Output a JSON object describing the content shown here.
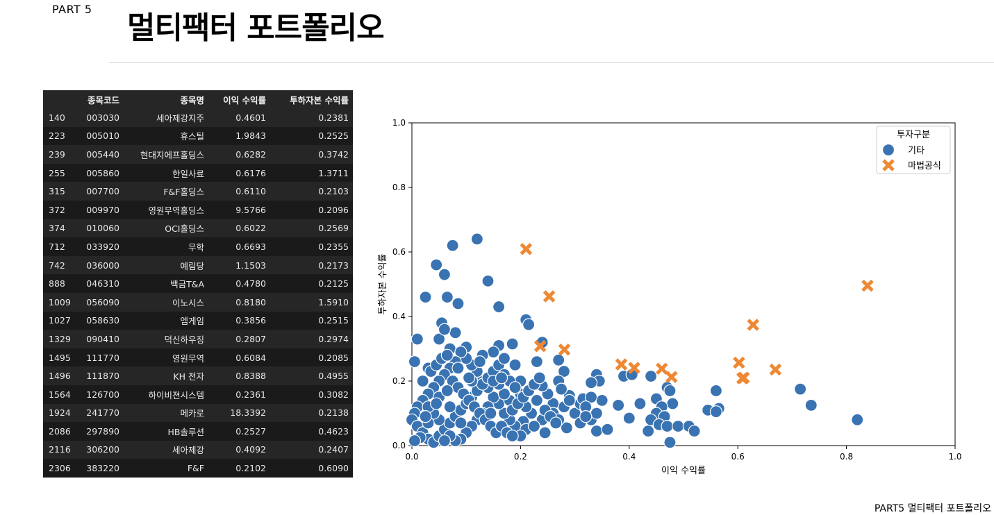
{
  "header": {
    "part": "PART 5",
    "title": "멀티팩터 포트폴리오"
  },
  "footer": "PART5 멀티팩터 포트폴리오",
  "table": {
    "columns": [
      "",
      "종목코드",
      "종목명",
      "이익 수익률",
      "투하자본 수익률"
    ],
    "rows": [
      [
        "140",
        "003030",
        "세아제강지주",
        "0.4601",
        "0.2381"
      ],
      [
        "223",
        "005010",
        "휴스틸",
        "1.9843",
        "0.2525"
      ],
      [
        "239",
        "005440",
        "현대지에프홀딩스",
        "0.6282",
        "0.3742"
      ],
      [
        "255",
        "005860",
        "한일사료",
        "0.6176",
        "1.3711"
      ],
      [
        "315",
        "007700",
        "F&F홀딩스",
        "0.6110",
        "0.2103"
      ],
      [
        "372",
        "009970",
        "영원무역홀딩스",
        "9.5766",
        "0.2096"
      ],
      [
        "374",
        "010060",
        "OCI홀딩스",
        "0.6022",
        "0.2569"
      ],
      [
        "712",
        "033920",
        "무학",
        "0.6693",
        "0.2355"
      ],
      [
        "742",
        "036000",
        "예림당",
        "1.1503",
        "0.2173"
      ],
      [
        "888",
        "046310",
        "백금T&A",
        "0.4780",
        "0.2125"
      ],
      [
        "1009",
        "056090",
        "이노시스",
        "0.8180",
        "1.5910"
      ],
      [
        "1027",
        "058630",
        "엠게임",
        "0.3856",
        "0.2515"
      ],
      [
        "1329",
        "090410",
        "덕신하우징",
        "0.2807",
        "0.2974"
      ],
      [
        "1495",
        "111770",
        "영원무역",
        "0.6084",
        "0.2085"
      ],
      [
        "1496",
        "111870",
        "KH 전자",
        "0.8388",
        "0.4955"
      ],
      [
        "1564",
        "126700",
        "하이비젼시스템",
        "0.2361",
        "0.3082"
      ],
      [
        "1924",
        "241770",
        "메카로",
        "18.3392",
        "0.2138"
      ],
      [
        "2086",
        "297890",
        "HB솔루션",
        "0.2527",
        "0.4623"
      ],
      [
        "2116",
        "306200",
        "세아제강",
        "0.4092",
        "0.2407"
      ],
      [
        "2306",
        "383220",
        "F&F",
        "0.2102",
        "0.6090"
      ]
    ]
  },
  "chart_data": {
    "type": "scatter",
    "xlabel": "이익 수익률",
    "ylabel": "투하자본 수익률",
    "xlim": [
      0,
      1
    ],
    "ylim": [
      0,
      1
    ],
    "xticks": [
      "0.0",
      "0.2",
      "0.4",
      "0.6",
      "0.8",
      "1.0"
    ],
    "yticks": [
      "0.0",
      "0.2",
      "0.4",
      "0.6",
      "0.8",
      "1.0"
    ],
    "grid": false,
    "legend": {
      "title": "투자구분",
      "placement": "top-right"
    },
    "series": [
      {
        "name": "기타",
        "marker": "circle",
        "color": "#3a73b2",
        "points": [
          [
            0.12,
            0.64
          ],
          [
            0.075,
            0.62
          ],
          [
            0.045,
            0.56
          ],
          [
            0.06,
            0.53
          ],
          [
            0.14,
            0.51
          ],
          [
            0.025,
            0.46
          ],
          [
            0.065,
            0.46
          ],
          [
            0.085,
            0.44
          ],
          [
            0.16,
            0.43
          ],
          [
            0.055,
            0.38
          ],
          [
            0.21,
            0.39
          ],
          [
            0.215,
            0.375
          ],
          [
            0.01,
            0.33
          ],
          [
            0.05,
            0.33
          ],
          [
            0.08,
            0.35
          ],
          [
            0.06,
            0.36
          ],
          [
            0.24,
            0.32
          ],
          [
            0.16,
            0.31
          ],
          [
            0.185,
            0.315
          ],
          [
            0.1,
            0.305
          ],
          [
            0.07,
            0.3
          ],
          [
            0.27,
            0.265
          ],
          [
            0.005,
            0.26
          ],
          [
            0.03,
            0.24
          ],
          [
            0.23,
            0.26
          ],
          [
            0.28,
            0.23
          ],
          [
            0.34,
            0.22
          ],
          [
            0.345,
            0.2
          ],
          [
            0.33,
            0.195
          ],
          [
            0.39,
            0.215
          ],
          [
            0.405,
            0.22
          ],
          [
            0.44,
            0.215
          ],
          [
            0.47,
            0.18
          ],
          [
            0.475,
            0.17
          ],
          [
            0.56,
            0.17
          ],
          [
            0.715,
            0.175
          ],
          [
            0.35,
            0.14
          ],
          [
            0.38,
            0.125
          ],
          [
            0.42,
            0.13
          ],
          [
            0.45,
            0.145
          ],
          [
            0.565,
            0.115
          ],
          [
            0.545,
            0.11
          ],
          [
            0.56,
            0.105
          ],
          [
            0.735,
            0.125
          ],
          [
            0.82,
            0.08
          ],
          [
            0.48,
            0.13
          ],
          [
            0.46,
            0.12
          ],
          [
            0.45,
            0.1
          ],
          [
            0.465,
            0.09
          ],
          [
            0.4,
            0.085
          ],
          [
            0.44,
            0.08
          ],
          [
            0.455,
            0.065
          ],
          [
            0.47,
            0.06
          ],
          [
            0.49,
            0.06
          ],
          [
            0.51,
            0.06
          ],
          [
            0.52,
            0.045
          ],
          [
            0.435,
            0.045
          ],
          [
            0.34,
            0.045
          ],
          [
            0.36,
            0.05
          ],
          [
            0.475,
            0.01
          ],
          [
            0.285,
            0.055
          ],
          [
            0.3,
            0.1
          ],
          [
            0.31,
            0.13
          ],
          [
            0.315,
            0.145
          ],
          [
            0.33,
            0.15
          ],
          [
            0.33,
            0.08
          ],
          [
            0.34,
            0.1
          ],
          [
            0.32,
            0.12
          ],
          [
            0.29,
            0.155
          ],
          [
            0.27,
            0.2
          ],
          [
            0.275,
            0.175
          ],
          [
            0.28,
            0.12
          ],
          [
            0.26,
            0.13
          ],
          [
            0.25,
            0.16
          ],
          [
            0.24,
            0.185
          ],
          [
            0.26,
            0.1
          ],
          [
            0.27,
            0.08
          ],
          [
            0.24,
            0.08
          ],
          [
            0.22,
            0.1
          ],
          [
            0.21,
            0.12
          ],
          [
            0.23,
            0.14
          ],
          [
            0.2,
            0.16
          ],
          [
            0.2,
            0.2
          ],
          [
            0.205,
            0.075
          ],
          [
            0.19,
            0.06
          ],
          [
            0.18,
            0.08
          ],
          [
            0.17,
            0.1
          ],
          [
            0.16,
            0.13
          ],
          [
            0.15,
            0.15
          ],
          [
            0.14,
            0.18
          ],
          [
            0.13,
            0.2
          ],
          [
            0.12,
            0.23
          ],
          [
            0.11,
            0.25
          ],
          [
            0.1,
            0.27
          ],
          [
            0.09,
            0.29
          ],
          [
            0.08,
            0.26
          ],
          [
            0.07,
            0.24
          ],
          [
            0.06,
            0.22
          ],
          [
            0.05,
            0.2
          ],
          [
            0.04,
            0.18
          ],
          [
            0.03,
            0.16
          ],
          [
            0.02,
            0.14
          ],
          [
            0.01,
            0.12
          ],
          [
            0.005,
            0.1
          ],
          [
            0.0,
            0.08
          ],
          [
            0.01,
            0.06
          ],
          [
            0.02,
            0.04
          ],
          [
            0.03,
            0.02
          ],
          [
            0.04,
            0.01
          ],
          [
            0.05,
            0.03
          ],
          [
            0.06,
            0.05
          ],
          [
            0.07,
            0.07
          ],
          [
            0.08,
            0.09
          ],
          [
            0.09,
            0.11
          ],
          [
            0.1,
            0.13
          ],
          [
            0.11,
            0.15
          ],
          [
            0.12,
            0.17
          ],
          [
            0.13,
            0.19
          ],
          [
            0.14,
            0.21
          ],
          [
            0.15,
            0.23
          ],
          [
            0.16,
            0.25
          ],
          [
            0.17,
            0.22
          ],
          [
            0.18,
            0.2
          ],
          [
            0.19,
            0.18
          ],
          [
            0.18,
            0.14
          ],
          [
            0.17,
            0.16
          ],
          [
            0.16,
            0.19
          ],
          [
            0.15,
            0.2
          ],
          [
            0.14,
            0.12
          ],
          [
            0.13,
            0.1
          ],
          [
            0.12,
            0.08
          ],
          [
            0.11,
            0.06
          ],
          [
            0.1,
            0.04
          ],
          [
            0.09,
            0.02
          ],
          [
            0.08,
            0.015
          ],
          [
            0.07,
            0.03
          ],
          [
            0.06,
            0.015
          ],
          [
            0.05,
            0.08
          ],
          [
            0.04,
            0.1
          ],
          [
            0.03,
            0.12
          ],
          [
            0.02,
            0.2
          ],
          [
            0.035,
            0.23
          ],
          [
            0.045,
            0.25
          ],
          [
            0.055,
            0.27
          ],
          [
            0.065,
            0.28
          ],
          [
            0.075,
            0.2
          ],
          [
            0.085,
            0.18
          ],
          [
            0.095,
            0.16
          ],
          [
            0.105,
            0.14
          ],
          [
            0.115,
            0.12
          ],
          [
            0.125,
            0.1
          ],
          [
            0.135,
            0.08
          ],
          [
            0.145,
            0.06
          ],
          [
            0.155,
            0.04
          ],
          [
            0.165,
            0.06
          ],
          [
            0.175,
            0.04
          ],
          [
            0.185,
            0.11
          ],
          [
            0.195,
            0.13
          ],
          [
            0.205,
            0.15
          ],
          [
            0.215,
            0.17
          ],
          [
            0.225,
            0.19
          ],
          [
            0.235,
            0.21
          ],
          [
            0.245,
            0.11
          ],
          [
            0.255,
            0.09
          ],
          [
            0.265,
            0.07
          ],
          [
            0.21,
            0.05
          ],
          [
            0.2,
            0.03
          ],
          [
            0.19,
            0.25
          ],
          [
            0.17,
            0.27
          ],
          [
            0.15,
            0.29
          ],
          [
            0.13,
            0.28
          ],
          [
            0.11,
            0.2
          ],
          [
            0.09,
            0.07
          ],
          [
            0.07,
            0.12
          ],
          [
            0.05,
            0.15
          ],
          [
            0.03,
            0.07
          ],
          [
            0.015,
            0.025
          ],
          [
            0.005,
            0.015
          ],
          [
            0.025,
            0.09
          ],
          [
            0.045,
            0.13
          ],
          [
            0.065,
            0.17
          ],
          [
            0.085,
            0.24
          ],
          [
            0.105,
            0.21
          ],
          [
            0.125,
            0.26
          ],
          [
            0.145,
            0.1
          ],
          [
            0.165,
            0.21
          ],
          [
            0.185,
            0.03
          ],
          [
            0.225,
            0.06
          ],
          [
            0.245,
            0.04
          ],
          [
            0.31,
            0.07
          ],
          [
            0.32,
            0.09
          ],
          [
            0.29,
            0.14
          ]
        ]
      },
      {
        "name": "마법공식",
        "marker": "x",
        "color": "#ee8833",
        "points": [
          [
            0.2102,
            0.609
          ],
          [
            0.2527,
            0.4623
          ],
          [
            0.8388,
            0.4955
          ],
          [
            0.6282,
            0.3742
          ],
          [
            0.2361,
            0.3082
          ],
          [
            0.2807,
            0.2974
          ],
          [
            0.3856,
            0.2515
          ],
          [
            0.6022,
            0.2569
          ],
          [
            0.4601,
            0.2381
          ],
          [
            0.6693,
            0.2355
          ],
          [
            0.4092,
            0.2407
          ],
          [
            0.478,
            0.2125
          ],
          [
            0.611,
            0.2103
          ],
          [
            0.6084,
            0.2085
          ]
        ]
      }
    ]
  }
}
